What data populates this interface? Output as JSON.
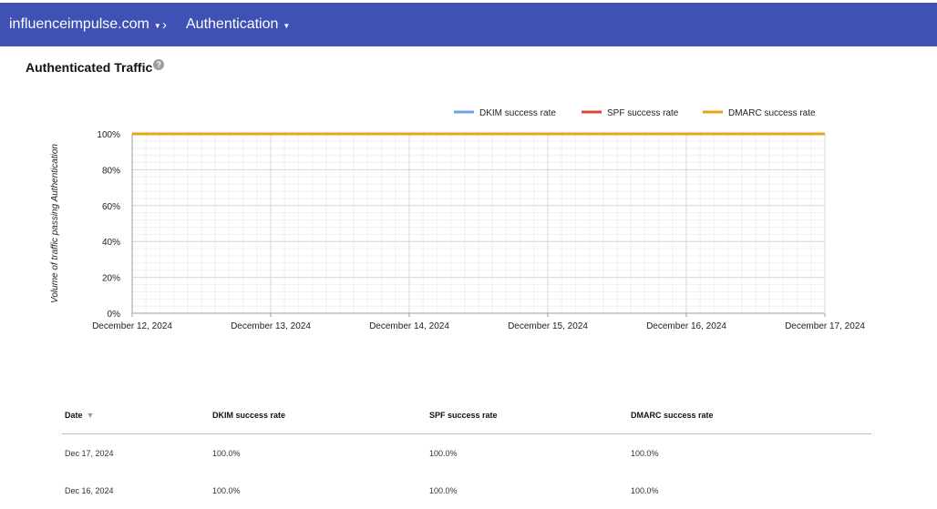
{
  "header": {
    "domain_label": "influenceimpulse.com",
    "section_label": "Authentication",
    "separator": "›"
  },
  "section": {
    "title": "Authenticated Traffic",
    "help_glyph": "?"
  },
  "chart_data": {
    "type": "line",
    "x": [
      "December 12, 2024",
      "December 13, 2024",
      "December 14, 2024",
      "December 15, 2024",
      "December 16, 2024",
      "December 17, 2024"
    ],
    "series": [
      {
        "name": "DKIM success rate",
        "color": "#6ba2ee",
        "values": [
          100,
          100,
          100,
          100,
          100,
          100
        ]
      },
      {
        "name": "SPF success rate",
        "color": "#db4437",
        "values": [
          100,
          100,
          100,
          100,
          100,
          100
        ]
      },
      {
        "name": "DMARC success rate",
        "color": "#e8a317",
        "values": [
          100,
          100,
          100,
          100,
          100,
          100
        ]
      }
    ],
    "ylabel": "Volume of traffic passing Authentication",
    "yticks": [
      "0%",
      "20%",
      "40%",
      "60%",
      "80%",
      "100%"
    ],
    "ylim": [
      0,
      100
    ],
    "grid": true,
    "legend_position": "top-right"
  },
  "table": {
    "headers": [
      "Date",
      "DKIM success rate",
      "SPF success rate",
      "DMARC success rate"
    ],
    "sort_icon": "▼",
    "rows": [
      [
        "Dec 17, 2024",
        "100.0%",
        "100.0%",
        "100.0%"
      ],
      [
        "Dec 16, 2024",
        "100.0%",
        "100.0%",
        "100.0%"
      ]
    ]
  }
}
